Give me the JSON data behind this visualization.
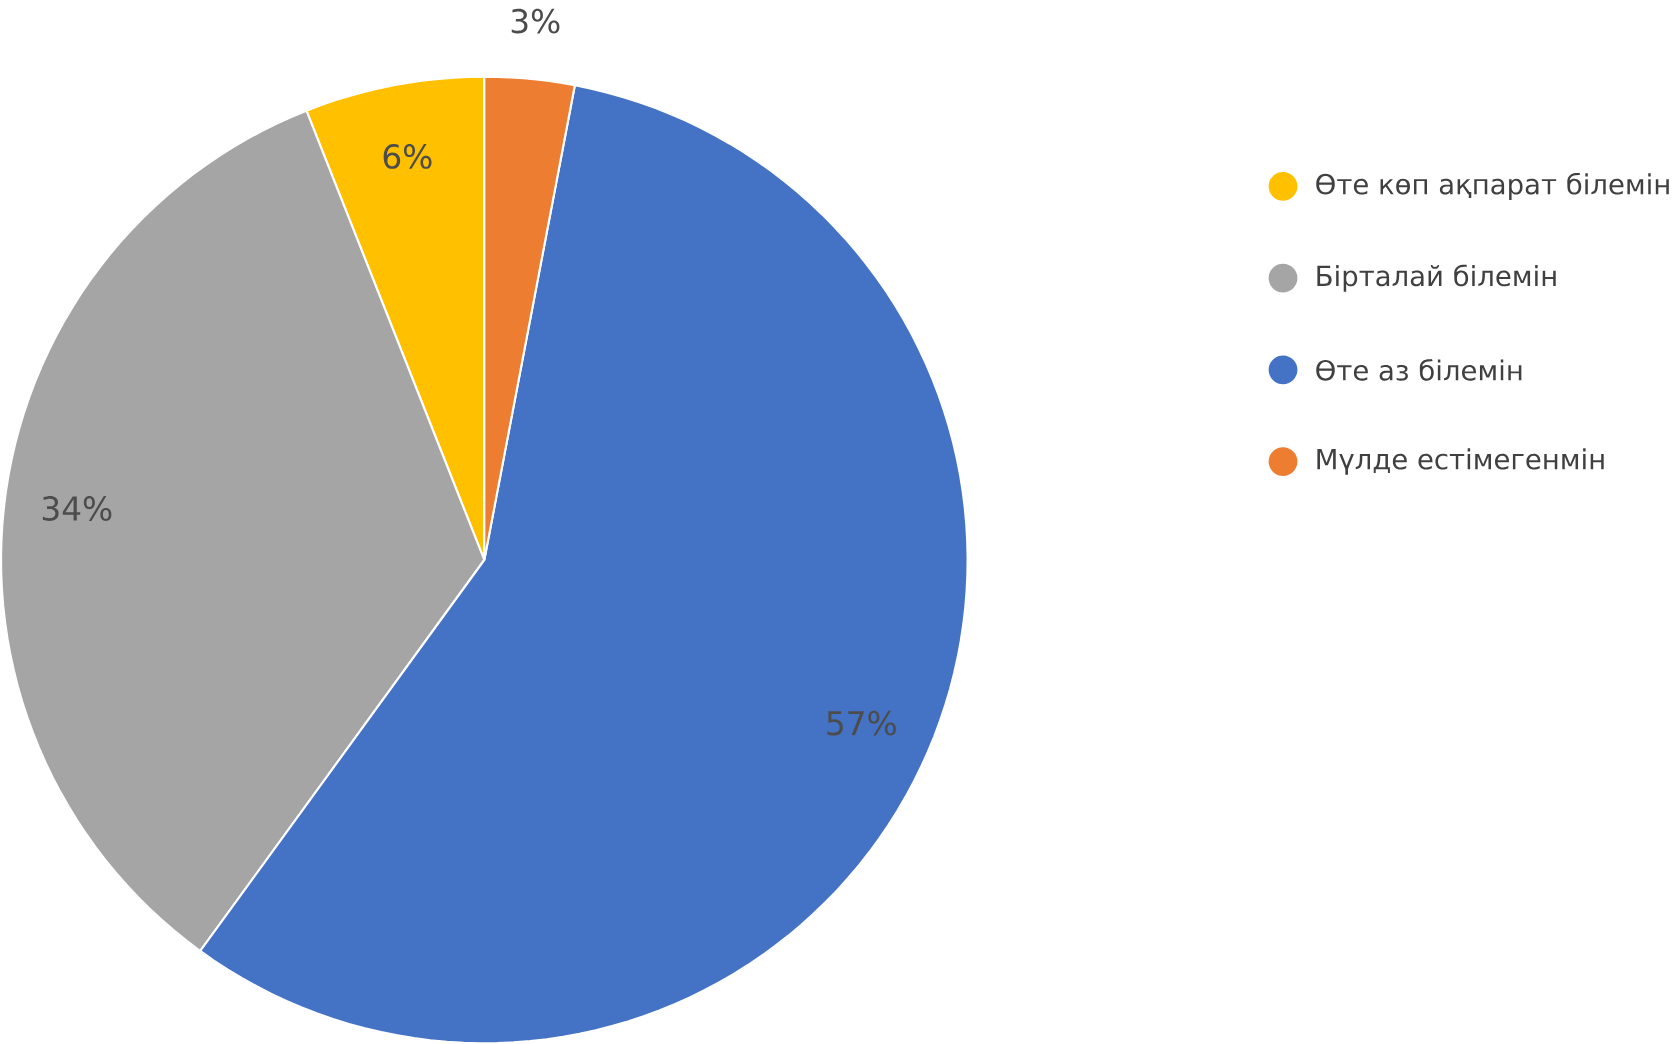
{
  "chart_data": {
    "type": "pie",
    "categories": [
      "Өте көп ақпарат білемін",
      "Бірталай білемін",
      "Өте аз білемін",
      "Мүлде естімегенмін"
    ],
    "values": [
      6,
      34,
      57,
      3
    ],
    "colors": [
      "#ffc000",
      "#a5a5a5",
      "#4472c4",
      "#ed7d31"
    ],
    "value_labels": [
      "6%",
      "34%",
      "57%",
      "3%"
    ],
    "legend": "right"
  }
}
